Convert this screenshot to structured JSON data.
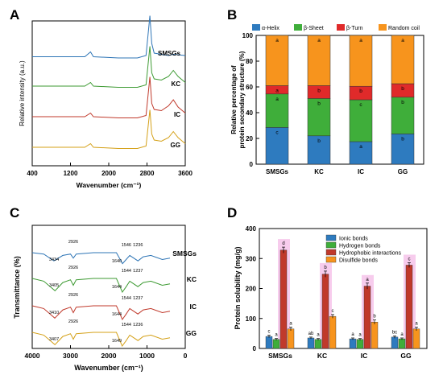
{
  "panel_labels": [
    "A",
    "B",
    "C",
    "D"
  ],
  "samples": [
    "SMSGs",
    "KC",
    "IC",
    "GG"
  ],
  "colors": {
    "SMSGs": "#2e75b6",
    "KC": "#3d9a32",
    "IC": "#c0392b",
    "GG": "#d4a017",
    "alpha": "#2e7bbf",
    "beta_sheet": "#3fae3a",
    "beta_turn": "#e02a2a",
    "random_coil": "#f7941d",
    "ionic": "#2e7bbf",
    "hydrogen": "#3fae3a",
    "hydrophobic": "#c0392b",
    "disulfide": "#f7941d",
    "highlight": "#f3b6e6"
  },
  "chart_data": [
    {
      "id": "A",
      "type": "line",
      "xlabel": "Wavenumber (cm⁻¹)",
      "ylabel": "Relative intensity (a.u.)",
      "xlim": [
        400,
        3600
      ],
      "xticks": [
        400,
        1200,
        2000,
        2800,
        3600
      ],
      "series": [
        {
          "name": "SMSGs",
          "x": [
            400,
            1000,
            1500,
            1620,
            1680,
            2200,
            2600,
            2780,
            2860,
            2900,
            2950,
            3100,
            3250,
            3350,
            3600
          ],
          "y": [
            0.01,
            0.01,
            0.01,
            0.05,
            0.01,
            0.0,
            0.0,
            0.02,
            0.35,
            0.12,
            0.04,
            0.03,
            0.02,
            0.03,
            0.02
          ]
        },
        {
          "name": "KC",
          "x": [
            400,
            1000,
            1500,
            1620,
            1680,
            2200,
            2600,
            2780,
            2860,
            2900,
            2950,
            3100,
            3250,
            3350,
            3450,
            3600
          ],
          "y": [
            0.02,
            0.02,
            0.02,
            0.05,
            0.02,
            0.01,
            0.01,
            0.03,
            0.35,
            0.13,
            0.08,
            0.07,
            0.1,
            0.15,
            0.1,
            0.05
          ]
        },
        {
          "name": "IC",
          "x": [
            400,
            1000,
            1500,
            1620,
            1680,
            2200,
            2600,
            2780,
            2860,
            2900,
            2950,
            3100,
            3250,
            3350,
            3450,
            3600
          ],
          "y": [
            0.02,
            0.02,
            0.02,
            0.05,
            0.02,
            0.01,
            0.01,
            0.03,
            0.35,
            0.13,
            0.08,
            0.07,
            0.11,
            0.16,
            0.1,
            0.05
          ]
        },
        {
          "name": "GG",
          "x": [
            400,
            1000,
            1500,
            1620,
            1680,
            2200,
            2600,
            2780,
            2860,
            2900,
            2950,
            3100,
            3250,
            3350,
            3450,
            3600
          ],
          "y": [
            0.02,
            0.02,
            0.02,
            0.05,
            0.02,
            0.01,
            0.01,
            0.03,
            0.33,
            0.13,
            0.08,
            0.07,
            0.1,
            0.15,
            0.1,
            0.05
          ]
        }
      ]
    },
    {
      "id": "B",
      "type": "bar",
      "stacked": true,
      "categories": [
        "SMSGs",
        "KC",
        "IC",
        "GG"
      ],
      "ylabel": "Relative percentage of protein secondary structure (%)",
      "ylim": [
        0,
        100
      ],
      "yticks": [
        0,
        20,
        40,
        60,
        80,
        100
      ],
      "legend": [
        "α-Helix",
        "β-Sheet",
        "β-Turn",
        "Random coil"
      ],
      "series": [
        {
          "name": "α-Helix",
          "values": [
            28.5,
            22.0,
            17.5,
            23.5
          ],
          "letters": [
            "c",
            "b",
            "a",
            "b"
          ]
        },
        {
          "name": "β-Sheet",
          "values": [
            26.0,
            29.0,
            32.5,
            28.5
          ],
          "letters": [
            "a",
            "b",
            "c",
            "b"
          ]
        },
        {
          "name": "β-Turn",
          "values": [
            6.5,
            10.0,
            10.5,
            10.5
          ],
          "letters": [
            "a",
            "b",
            "b",
            "b"
          ]
        },
        {
          "name": "Random coil",
          "values": [
            39.0,
            39.0,
            39.5,
            37.5
          ],
          "letters": [
            "a",
            "a",
            "a",
            "a"
          ]
        }
      ]
    },
    {
      "id": "C",
      "type": "line",
      "xlabel": "Wavenumber (cm⁻¹)",
      "ylabel": "Transmittance (%)",
      "xlim": [
        4000,
        0
      ],
      "xticks": [
        4000,
        3000,
        2000,
        1000,
        0
      ],
      "series_labels": [
        "SMSGs",
        "KC",
        "IC",
        "GG"
      ],
      "peak_labels": [
        [
          "3434",
          "2926",
          "1640",
          "1546",
          "1236"
        ],
        [
          "3405",
          "2926",
          "1644",
          "1544",
          "1237"
        ],
        [
          "3410",
          "2926",
          "1644",
          "1544",
          "1237"
        ],
        [
          "3407",
          "2926",
          "1649",
          "1544",
          "1236"
        ]
      ],
      "series": [
        {
          "name": "SMSGs",
          "x": [
            4000,
            3700,
            3434,
            3200,
            3000,
            2926,
            2850,
            2400,
            2000,
            1800,
            1640,
            1546,
            1450,
            1236,
            1100,
            900,
            600,
            400
          ],
          "y": [
            0.0,
            -0.01,
            -0.06,
            -0.02,
            -0.01,
            -0.04,
            -0.01,
            0.0,
            0.0,
            0.0,
            -0.08,
            -0.05,
            -0.02,
            -0.06,
            -0.03,
            -0.02,
            -0.05,
            -0.04
          ]
        },
        {
          "name": "KC",
          "x": [
            4000,
            3700,
            3405,
            3200,
            3000,
            2926,
            2850,
            2400,
            2000,
            1800,
            1644,
            1544,
            1450,
            1237,
            1100,
            900,
            600,
            400
          ],
          "y": [
            0.0,
            -0.02,
            -0.09,
            -0.03,
            -0.01,
            -0.05,
            -0.01,
            0.0,
            0.0,
            0.0,
            -0.1,
            -0.06,
            -0.02,
            -0.06,
            -0.03,
            -0.02,
            -0.05,
            -0.04
          ]
        },
        {
          "name": "IC",
          "x": [
            4000,
            3700,
            3410,
            3200,
            3000,
            2926,
            2850,
            2400,
            2000,
            1800,
            1644,
            1544,
            1450,
            1237,
            1100,
            900,
            600,
            400
          ],
          "y": [
            0.0,
            -0.02,
            -0.09,
            -0.03,
            -0.01,
            -0.05,
            -0.01,
            0.0,
            0.0,
            0.0,
            -0.1,
            -0.06,
            -0.02,
            -0.06,
            -0.03,
            -0.02,
            -0.05,
            -0.04
          ]
        },
        {
          "name": "GG",
          "x": [
            4000,
            3700,
            3407,
            3200,
            3000,
            2926,
            2850,
            2400,
            2000,
            1800,
            1649,
            1544,
            1450,
            1236,
            1100,
            900,
            600,
            400
          ],
          "y": [
            0.0,
            -0.02,
            -0.09,
            -0.03,
            -0.01,
            -0.05,
            -0.01,
            0.0,
            0.0,
            0.0,
            -0.1,
            -0.06,
            -0.02,
            -0.06,
            -0.03,
            -0.02,
            -0.05,
            -0.04
          ]
        }
      ]
    },
    {
      "id": "D",
      "type": "bar",
      "categories": [
        "SMSGs",
        "KC",
        "IC",
        "GG"
      ],
      "ylabel": "Protein solubility (mg/g)",
      "ylim": [
        0,
        400
      ],
      "yticks": [
        0,
        100,
        200,
        300,
        400
      ],
      "legend": [
        "Ionic bonds",
        "Hydrogen bonds",
        "Hydrophobic interactions",
        "Disulfide bonds"
      ],
      "series": [
        {
          "name": "Ionic bonds",
          "values": [
            40,
            35,
            32,
            38
          ],
          "errors": [
            4,
            3,
            3,
            4
          ],
          "letters": [
            "c",
            "ab",
            "a",
            "bc"
          ]
        },
        {
          "name": "Hydrogen bonds",
          "values": [
            30,
            30,
            30,
            32
          ],
          "errors": [
            3,
            3,
            3,
            3
          ],
          "letters": [
            "a",
            "a",
            "a",
            "a"
          ]
        },
        {
          "name": "Hydrophobic interactions",
          "values": [
            328,
            248,
            208,
            278
          ],
          "errors": [
            10,
            10,
            10,
            8
          ],
          "letters": [
            "d",
            "b",
            "a",
            "c"
          ]
        },
        {
          "name": "Disulfide bonds",
          "values": [
            65,
            107,
            88,
            65
          ],
          "errors": [
            6,
            6,
            7,
            6
          ],
          "letters": [
            "a",
            "c",
            "b",
            "a"
          ]
        }
      ]
    }
  ]
}
